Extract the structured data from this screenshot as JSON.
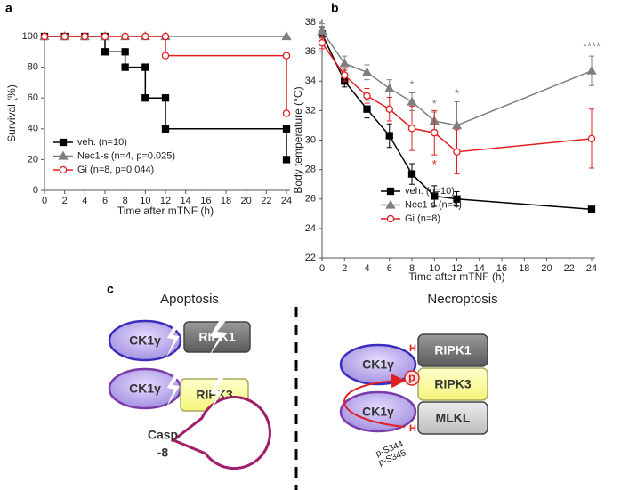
{
  "chart_data": [
    {
      "type": "line",
      "panel_label": "a",
      "xlabel": "Time after mTNF (h)",
      "ylabel": "Survival (%)",
      "xlim": [
        0,
        24
      ],
      "xticks": [
        0,
        2,
        4,
        6,
        8,
        10,
        12,
        14,
        16,
        18,
        20,
        22,
        24
      ],
      "ylim": [
        0,
        100
      ],
      "yticks": [
        0,
        20,
        40,
        60,
        80,
        100
      ],
      "legend": "lower left",
      "series": [
        {
          "name": "veh. (n=10)",
          "color": "#000000",
          "marker": "square",
          "x": [
            0,
            2,
            4,
            6,
            6,
            8,
            8,
            10,
            10,
            12,
            12,
            24,
            24
          ],
          "values": [
            100,
            100,
            100,
            100,
            90,
            90,
            80,
            80,
            60,
            60,
            40,
            40,
            20
          ]
        },
        {
          "name": "Nec1-s (n=4, p=0.025)",
          "color": "#7f7f7f",
          "marker": "triangle",
          "x": [
            0,
            2,
            4,
            6,
            8,
            10,
            12,
            24
          ],
          "values": [
            100,
            100,
            100,
            100,
            100,
            100,
            100,
            100
          ]
        },
        {
          "name": "Gi (n=8, p=0.044)",
          "color": "#e0201f",
          "marker": "circle",
          "x": [
            0,
            2,
            4,
            6,
            8,
            10,
            12,
            12,
            24,
            24
          ],
          "values": [
            100,
            100,
            100,
            100,
            100,
            100,
            100,
            87.5,
            87.5,
            50
          ]
        }
      ]
    },
    {
      "type": "line",
      "panel_label": "b",
      "xlabel": "Time after mTNF (h)",
      "ylabel": "Body temperature (°C)",
      "xlim": [
        0,
        24
      ],
      "xticks": [
        0,
        2,
        4,
        6,
        8,
        10,
        12,
        14,
        16,
        18,
        20,
        22,
        24
      ],
      "ylim": [
        22,
        38
      ],
      "yticks": [
        22,
        24,
        26,
        28,
        30,
        32,
        34,
        36,
        38
      ],
      "legend": "lower left",
      "series": [
        {
          "name": "veh. (n=10)",
          "color": "#000000",
          "marker": "square",
          "x": [
            0,
            2,
            4,
            6,
            8,
            10,
            12,
            24
          ],
          "values": [
            37.2,
            34.0,
            32.1,
            30.3,
            27.7,
            26.2,
            26.0,
            25.3
          ],
          "errors": [
            0.5,
            0.4,
            0.6,
            0.8,
            0.7,
            0.7,
            0.5,
            0.2
          ]
        },
        {
          "name": "Nec1-s (n=4)",
          "color": "#7f7f7f",
          "marker": "triangle",
          "x": [
            0,
            2,
            4,
            6,
            8,
            10,
            12,
            24
          ],
          "values": [
            37.4,
            35.2,
            34.6,
            33.5,
            32.6,
            31.3,
            31.0,
            34.7
          ],
          "errors": [
            0.5,
            0.5,
            0.5,
            0.6,
            0.6,
            0.6,
            1.6,
            1.0
          ]
        },
        {
          "name": "Gi (n=8)",
          "color": "#e0201f",
          "marker": "circle",
          "x": [
            0,
            2,
            4,
            6,
            8,
            10,
            12,
            24
          ],
          "values": [
            36.6,
            34.4,
            33.0,
            32.1,
            30.8,
            30.5,
            29.2,
            30.1
          ],
          "errors": [
            0.4,
            0.4,
            0.5,
            0.8,
            1.5,
            1.5,
            1.5,
            2.0
          ]
        }
      ],
      "annotations": [
        {
          "text": "*",
          "x": 8,
          "y": 33.7,
          "color": "#7f7f7f"
        },
        {
          "text": "*",
          "x": 10,
          "y": 32.4,
          "color": "#7f7f7f"
        },
        {
          "text": "*",
          "x": 12,
          "y": 33.1,
          "color": "#7f7f7f"
        },
        {
          "text": "*",
          "x": 10,
          "y": 28.3,
          "color": "#e0201f"
        },
        {
          "text": "****",
          "x": 24,
          "y": 36.3,
          "color": "#7f7f7f"
        }
      ]
    }
  ],
  "diagram": {
    "label": "c",
    "left": {
      "title": "Apoptosis",
      "ck1": [
        "CK1γ",
        "CK1γ"
      ],
      "ripk1": "RIPK1",
      "ripk3": "RIPK3",
      "casp": [
        "Casp",
        "-8"
      ]
    },
    "right": {
      "title": "Necroptosis",
      "ck1": [
        "CK1γ",
        "CK1γ"
      ],
      "ripk1": "RIPK1",
      "ripk3": "RIPK3",
      "mlkl": "MLKL",
      "phospho": "p",
      "sites": [
        "p-S344",
        "p-S345"
      ]
    }
  }
}
